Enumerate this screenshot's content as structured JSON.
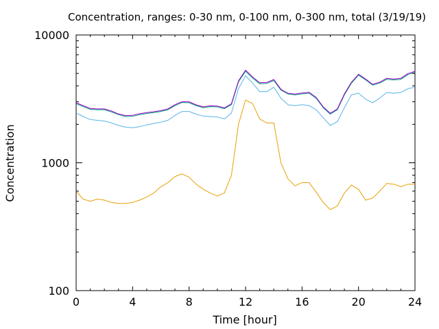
{
  "chart_data": {
    "type": "line",
    "title": "Concentration, ranges: 0-30 nm, 0-100 nm, 0-300 nm, total (3/19/19)",
    "xlabel": "Time [hour]",
    "ylabel": "Concentration",
    "xlim": [
      0,
      24
    ],
    "ylim": [
      100,
      10000
    ],
    "yscale": "log",
    "grid": false,
    "legend": "none",
    "x_ticks": [
      "0",
      "4",
      "8",
      "12",
      "16",
      "20",
      "24"
    ],
    "y_ticks": [
      "100",
      "1000",
      "10000"
    ],
    "x": [
      0,
      0.5,
      1,
      1.5,
      2,
      2.5,
      3,
      3.5,
      4,
      4.5,
      5,
      5.5,
      6,
      6.5,
      7,
      7.5,
      8,
      8.5,
      9,
      9.5,
      10,
      10.5,
      11,
      11.5,
      12,
      12.5,
      13,
      13.5,
      14,
      14.5,
      15,
      15.5,
      16,
      16.5,
      17,
      17.5,
      18,
      18.5,
      19,
      19.5,
      20,
      20.5,
      21,
      21.5,
      22,
      22.5,
      23,
      23.5,
      24
    ],
    "series": [
      {
        "color": "#e69f00",
        "values": [
          600,
          520,
          500,
          520,
          510,
          490,
          480,
          480,
          490,
          510,
          540,
          580,
          650,
          700,
          780,
          820,
          770,
          680,
          620,
          580,
          550,
          580,
          800,
          2000,
          3100,
          2900,
          2200,
          2050,
          2050,
          1000,
          750,
          660,
          700,
          700,
          590,
          490,
          430,
          460,
          580,
          670,
          620,
          510,
          530,
          600,
          690,
          680,
          650,
          680,
          680
        ]
      },
      {
        "color": "#56b4e9",
        "values": [
          2450,
          2300,
          2180,
          2150,
          2120,
          2050,
          1960,
          1900,
          1880,
          1920,
          1980,
          2030,
          2080,
          2150,
          2350,
          2520,
          2520,
          2400,
          2320,
          2300,
          2280,
          2200,
          2450,
          3800,
          4800,
          4200,
          3600,
          3600,
          3900,
          3200,
          2850,
          2800,
          2850,
          2800,
          2600,
          2250,
          1960,
          2100,
          2700,
          3400,
          3500,
          3150,
          2950,
          3200,
          3550,
          3500,
          3550,
          3800,
          3900
        ]
      },
      {
        "color": "#009e73",
        "values": [
          2900,
          2750,
          2620,
          2600,
          2600,
          2500,
          2380,
          2300,
          2310,
          2380,
          2430,
          2470,
          2520,
          2600,
          2800,
          2960,
          2950,
          2800,
          2700,
          2750,
          2740,
          2650,
          2850,
          4300,
          5200,
          4600,
          4150,
          4180,
          4400,
          3700,
          3450,
          3400,
          3460,
          3500,
          3200,
          2700,
          2400,
          2600,
          3400,
          4200,
          4850,
          4450,
          4050,
          4200,
          4500,
          4450,
          4500,
          4900,
          5100
        ]
      },
      {
        "color": "#9400d3",
        "values": [
          2950,
          2800,
          2660,
          2640,
          2640,
          2540,
          2410,
          2340,
          2350,
          2420,
          2470,
          2510,
          2560,
          2640,
          2850,
          3000,
          3000,
          2840,
          2740,
          2790,
          2780,
          2690,
          2900,
          4380,
          5300,
          4700,
          4230,
          4250,
          4480,
          3760,
          3500,
          3450,
          3510,
          3560,
          3250,
          2740,
          2440,
          2640,
          3460,
          4270,
          4930,
          4520,
          4110,
          4270,
          4580,
          4520,
          4580,
          4990,
          5200
        ]
      }
    ]
  }
}
